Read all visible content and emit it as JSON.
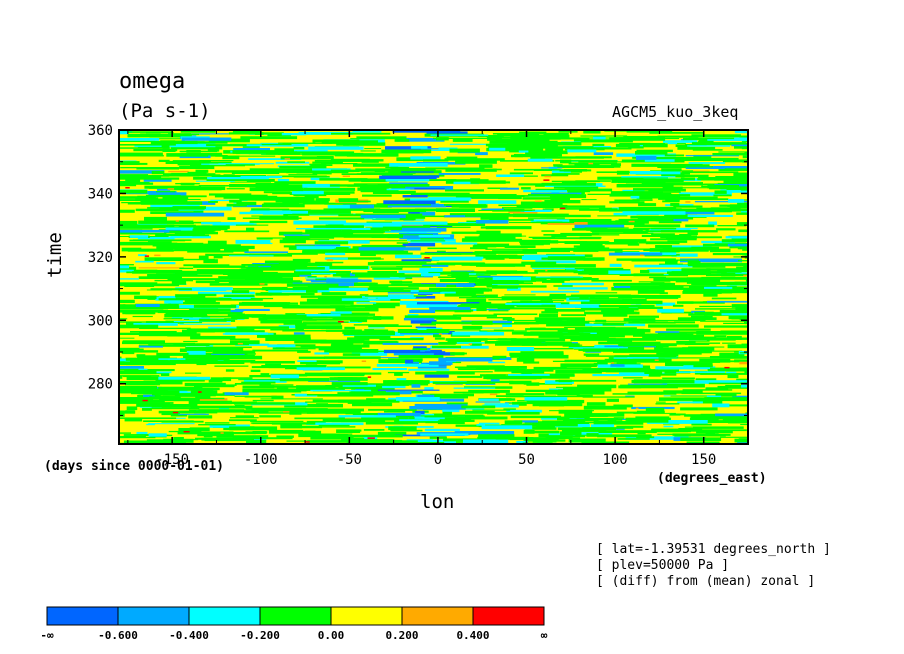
{
  "chart_data": {
    "type": "heatmap",
    "title": "omega",
    "units": "(Pa s-1)",
    "dataset": "AGCM5_kuo_3keq",
    "xlabel": "lon",
    "ylabel": "time",
    "x_units": "(degrees_east)",
    "y_units": "(days since 0000-01-01)",
    "xlim": [
      -180,
      175
    ],
    "ylim": [
      261,
      360
    ],
    "x_ticks": [
      -150,
      -100,
      -50,
      0,
      50,
      100,
      150
    ],
    "x_tick_labels": [
      "-150",
      "-100",
      "-50",
      "0",
      "50",
      "100",
      "150"
    ],
    "y_ticks": [
      280,
      300,
      320,
      340,
      360
    ],
    "y_tick_labels": [
      "280",
      "300",
      "320",
      "340",
      "360"
    ],
    "annotations": [
      "[ lat=-1.39531 degrees_north ]",
      "[ plev=50000 Pa ]",
      "[ (diff) from (mean) zonal ]"
    ],
    "colorbar": {
      "levels": [
        -0.6,
        -0.4,
        -0.2,
        0.0,
        0.2,
        0.4
      ],
      "tick_labels": [
        "-∞",
        "-0.600",
        "-0.400",
        "-0.200",
        "0.00",
        "0.200",
        "0.400",
        "∞"
      ],
      "colors": [
        "#0066ff",
        "#00aaff",
        "#00ffff",
        "#00ff00",
        "#ffff00",
        "#ffaa00",
        "#ff0000"
      ]
    },
    "pattern": {
      "background_class_color": "#ffff00",
      "enhanced_upward_lon_center": -5,
      "enhanced_upward_lon_halfwidth": 12
    }
  }
}
